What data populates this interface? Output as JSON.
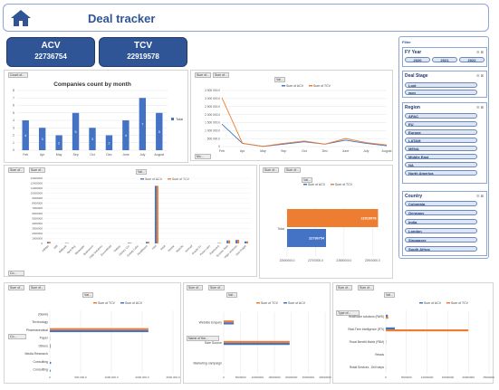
{
  "header": {
    "title": "Deal tracker",
    "home_icon": "home-icon",
    "accent": "#2f5597"
  },
  "kpis": [
    {
      "label": "ACV",
      "value": "22736754"
    },
    {
      "label": "TCV",
      "value": "22919578"
    }
  ],
  "filters": {
    "title": "Filter",
    "fy": {
      "title": "FY Year",
      "items": [
        "2020",
        "2021",
        "2022"
      ]
    },
    "deal_stage": {
      "title": "Deal Stage",
      "items": [
        "Lost",
        "won"
      ]
    },
    "region": {
      "title": "Region",
      "items": [
        "APAC",
        "EU",
        "Europe",
        "LATAM",
        "MENA",
        "Middle East",
        "NA",
        "North America"
      ]
    },
    "country": {
      "title": "Country",
      "items": [
        "Colombia",
        "Germany",
        "India",
        "London",
        "Singapore",
        "South Africa"
      ]
    }
  },
  "chart_buttons": {
    "count_btn": "Count of...",
    "count_field": "Mo...",
    "sum_acv": "Sum of...",
    "sum_tcv": "Sum of...",
    "values_btn": "Val...",
    "row_field": "Co...",
    "name_btn": "Name of the...",
    "type_btn": "Type of..."
  },
  "chart_data": [
    {
      "id": "companies_by_month",
      "type": "bar",
      "title": "Companies count by month",
      "categories": [
        "Feb",
        "Apr",
        "May",
        "Sep",
        "Oct",
        "Dec",
        "June",
        "July",
        "August"
      ],
      "series": [
        {
          "name": "Total",
          "values": [
            4,
            3,
            2,
            5,
            3,
            2,
            4,
            7,
            5
          ]
        }
      ],
      "ylim": [
        0,
        8
      ],
      "yticks": [
        0,
        1,
        2,
        3,
        4,
        5,
        6,
        7,
        8
      ],
      "legend": "right",
      "colors": [
        "#4472c4"
      ]
    },
    {
      "id": "acv_tcv_by_month",
      "type": "line",
      "categories": [
        "Feb",
        "Apr",
        "May",
        "Sep",
        "Oct",
        "Dec",
        "June",
        "July",
        "August"
      ],
      "series": [
        {
          "name": "Sum of ACV",
          "values": [
            1400000,
            200000,
            10000,
            150000,
            300000,
            150000,
            400000,
            200000,
            50000
          ]
        },
        {
          "name": "Sum of TCV",
          "values": [
            3050000,
            200000,
            20000,
            200000,
            350000,
            150000,
            500000,
            250000,
            100000
          ]
        }
      ],
      "ylim": [
        0,
        3500000
      ],
      "yticks": [
        "0",
        "500 000.0",
        "1 000 000.0",
        "1 500 000.0",
        "2 000 000.0",
        "2 500 000.0",
        "3 000 000.0",
        "3 500 000.0"
      ],
      "legend": "top",
      "colors": [
        "#4472c4",
        "#ed7d31"
      ]
    },
    {
      "id": "acv_tcv_by_company",
      "type": "bar",
      "categories": [
        "Adidas",
        "Aldi",
        "Ballpark",
        "Best Buy",
        "Bluewater",
        "Brainstorm",
        "Data Solutions",
        "ExxonMobil",
        "Galaxy",
        "Globex Cor",
        "Gravity Labs",
        "Healthcare",
        "Intel",
        "Intuit",
        "Kantar",
        "MetLife",
        "Nomad",
        "Oracle Co",
        "Pulse Labs",
        "Rainforest",
        "Sunrise Tech",
        "Vega Ventures",
        "Visa Insight"
      ],
      "series": [
        {
          "name": "Sum of ACV",
          "values": [
            300000,
            0,
            80000,
            0,
            0,
            0,
            0,
            0,
            0,
            120000,
            0,
            300000,
            11500000,
            0,
            0,
            0,
            0,
            0,
            0,
            80000,
            600000,
            700000,
            400000
          ]
        },
        {
          "name": "Sum of TCV",
          "values": [
            310000,
            0,
            90000,
            0,
            0,
            0,
            0,
            0,
            0,
            130000,
            0,
            310000,
            11500000,
            0,
            0,
            0,
            0,
            0,
            0,
            90000,
            620000,
            720000,
            420000
          ]
        }
      ],
      "ylim": [
        0,
        13000000
      ],
      "yticks": [
        "0",
        "1000000",
        "2000000",
        "3000000",
        "4000000",
        "5000000",
        "6000000",
        "7000000",
        "8000000",
        "9000000",
        "10000000",
        "11000000",
        "12000000",
        "13000000"
      ],
      "legend": "top",
      "colors": [
        "#4472c4",
        "#ed7d31"
      ]
    },
    {
      "id": "total_acv_tcv",
      "type": "bar",
      "orientation": "horizontal",
      "categories": [
        "Total"
      ],
      "series": [
        {
          "name": "Sum of ACV",
          "values": [
            22736754
          ]
        },
        {
          "name": "Sum of TCV",
          "values": [
            22919578
          ]
        }
      ],
      "data_labels": [
        "22736754",
        "22919578"
      ],
      "xlim": [
        22600000,
        22950000
      ],
      "xticks": [
        "22600000.0",
        "22700000.0",
        "22800000.0",
        "22900000.0"
      ],
      "legend": "top",
      "colors": [
        "#4472c4",
        "#ed7d31"
      ]
    },
    {
      "id": "acv_tcv_by_industry",
      "type": "bar",
      "orientation": "horizontal",
      "categories": [
        "(blank)",
        "Technology",
        "Pharmaceutical",
        "Paper",
        "Others",
        "Media Research",
        "Consulting",
        "Consulting"
      ],
      "series": [
        {
          "name": "Sum of TCV",
          "values": [
            0,
            0,
            20000000,
            50000,
            150000,
            0,
            0,
            0
          ]
        },
        {
          "name": "Sum of ACV",
          "values": [
            0,
            0,
            20000000,
            40000,
            120000,
            0,
            250000,
            150000
          ]
        }
      ],
      "xlim": [
        0,
        25000000
      ],
      "xticks": [
        "0",
        "500 000.0",
        "1000 000.0",
        "2000 000.0",
        "2500 000.0"
      ],
      "legend": "top",
      "colors": [
        "#ed7d31",
        "#4472c4"
      ]
    },
    {
      "id": "acv_tcv_by_source",
      "type": "bar",
      "orientation": "horizontal",
      "categories": [
        "Website Enquiry",
        "Sale Source",
        "Marketing campaign"
      ],
      "series": [
        {
          "name": "Sum of TCV",
          "values": [
            3000000,
            19500000,
            0
          ]
        },
        {
          "name": "Sum of ACV",
          "values": [
            3000000,
            19500000,
            0
          ]
        }
      ],
      "xlim": [
        0,
        30000000
      ],
      "xticks": [
        "0",
        "5000000",
        "10000000",
        "15000000",
        "20000000",
        "25000000",
        "30000000"
      ],
      "legend": "top",
      "colors": [
        "#ed7d31",
        "#4472c4"
      ]
    },
    {
      "id": "acv_tcv_by_service",
      "type": "bar",
      "orientation": "horizontal",
      "categories": [
        "Healthcare solutions (RWS)",
        "Real-Time Intelligence (RTI)",
        "Fiscal Benefit Matrix (FBM)",
        "Rewds",
        "Retail Services - Drill steps"
      ],
      "series": [
        {
          "name": "Sum of ACV",
          "values": [
            500000,
            2200000,
            50000,
            0,
            20000
          ]
        },
        {
          "name": "Sum of TCV",
          "values": [
            600000,
            20000000,
            60000,
            0,
            30000
          ]
        }
      ],
      "xlim": [
        0,
        25000000
      ],
      "xticks": [
        "0",
        "5000000",
        "10000000",
        "15000000",
        "20000000",
        "25000000"
      ],
      "legend": "top",
      "colors": [
        "#4472c4",
        "#ed7d31"
      ]
    }
  ]
}
